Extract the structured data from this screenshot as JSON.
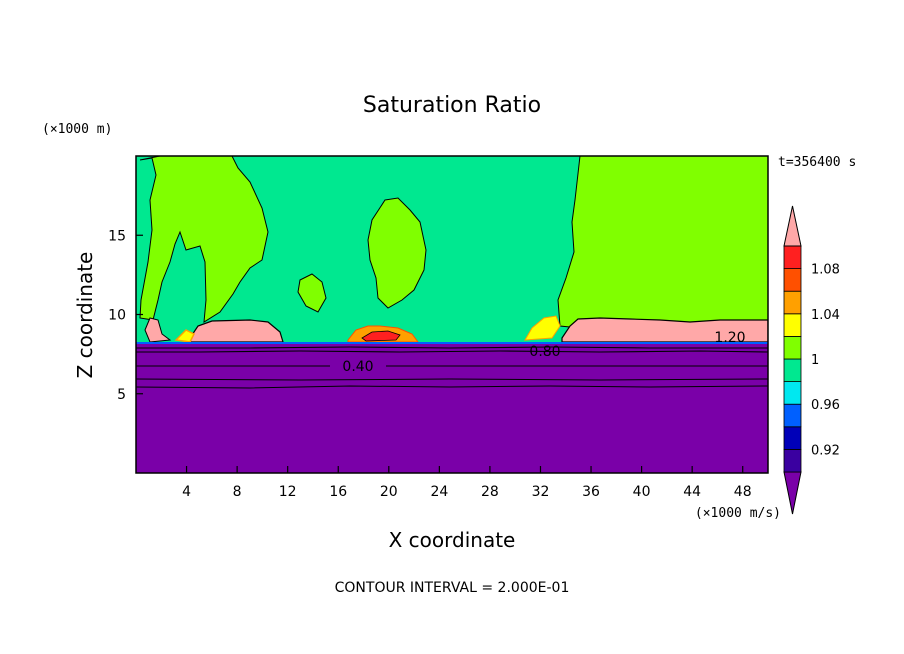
{
  "chart_data": {
    "type": "heatmap",
    "title": "Saturation Ratio",
    "xlabel": "X coordinate",
    "ylabel": "Z coordinate",
    "x_unit": "(×1000 m/s)",
    "y_unit": "(×1000 m)",
    "time_label": "t=356400 s",
    "footer": "CONTOUR INTERVAL = 2.000E-01",
    "xlim": [
      0,
      50
    ],
    "ylim": [
      0,
      20
    ],
    "x_ticks": [
      4,
      8,
      12,
      16,
      20,
      24,
      28,
      32,
      36,
      40,
      44,
      48
    ],
    "y_ticks": [
      5,
      10,
      15
    ],
    "colorbar": {
      "levels": [
        0.9,
        0.92,
        0.94,
        0.96,
        0.98,
        1.0,
        1.02,
        1.04,
        1.06,
        1.08,
        1.1
      ],
      "tick_labels": [
        "0.92",
        "0.96",
        "1",
        "1.04",
        "1.08"
      ],
      "tick_values": [
        0.92,
        0.96,
        1.0,
        1.04,
        1.08
      ],
      "colors": [
        "#7a00a8",
        "#3a00a0",
        "#0000b8",
        "#0060ff",
        "#00e8f0",
        "#00e890",
        "#80ff00",
        "#ffff00",
        "#ffa000",
        "#ff5000",
        "#ff2020",
        "#ffa8a8"
      ],
      "extend": "both"
    },
    "layers": [
      {
        "name": "subsaturated lower region",
        "z_range": [
          0,
          8.1
        ],
        "value_below": 0.9
      },
      {
        "name": "saturated background",
        "value": 0.99
      },
      {
        "name": "cloud anvil regions",
        "value": 1.01
      }
    ],
    "cloud_cores": [
      {
        "x_range": [
          0.5,
          2.5
        ],
        "z": 9.1,
        "value": 1.1
      },
      {
        "x_range": [
          5,
          11
        ],
        "z": 9.0,
        "value": 1.1
      },
      {
        "x_range": [
          16.5,
          22.5
        ],
        "z": 8.7,
        "value": 1.07
      },
      {
        "x_range": [
          30,
          33
        ],
        "z": 9.0,
        "value": 1.04
      },
      {
        "x_range": [
          33.5,
          50
        ],
        "z": 9.0,
        "value": 1.1
      }
    ],
    "contour_labels": [
      {
        "text": "0.40",
        "x": 17.5,
        "z": 6.7
      },
      {
        "text": "0.80",
        "x": 32.0,
        "z": 7.9
      },
      {
        "text": "1.20",
        "x": 47.0,
        "z": 8.8
      }
    ]
  }
}
